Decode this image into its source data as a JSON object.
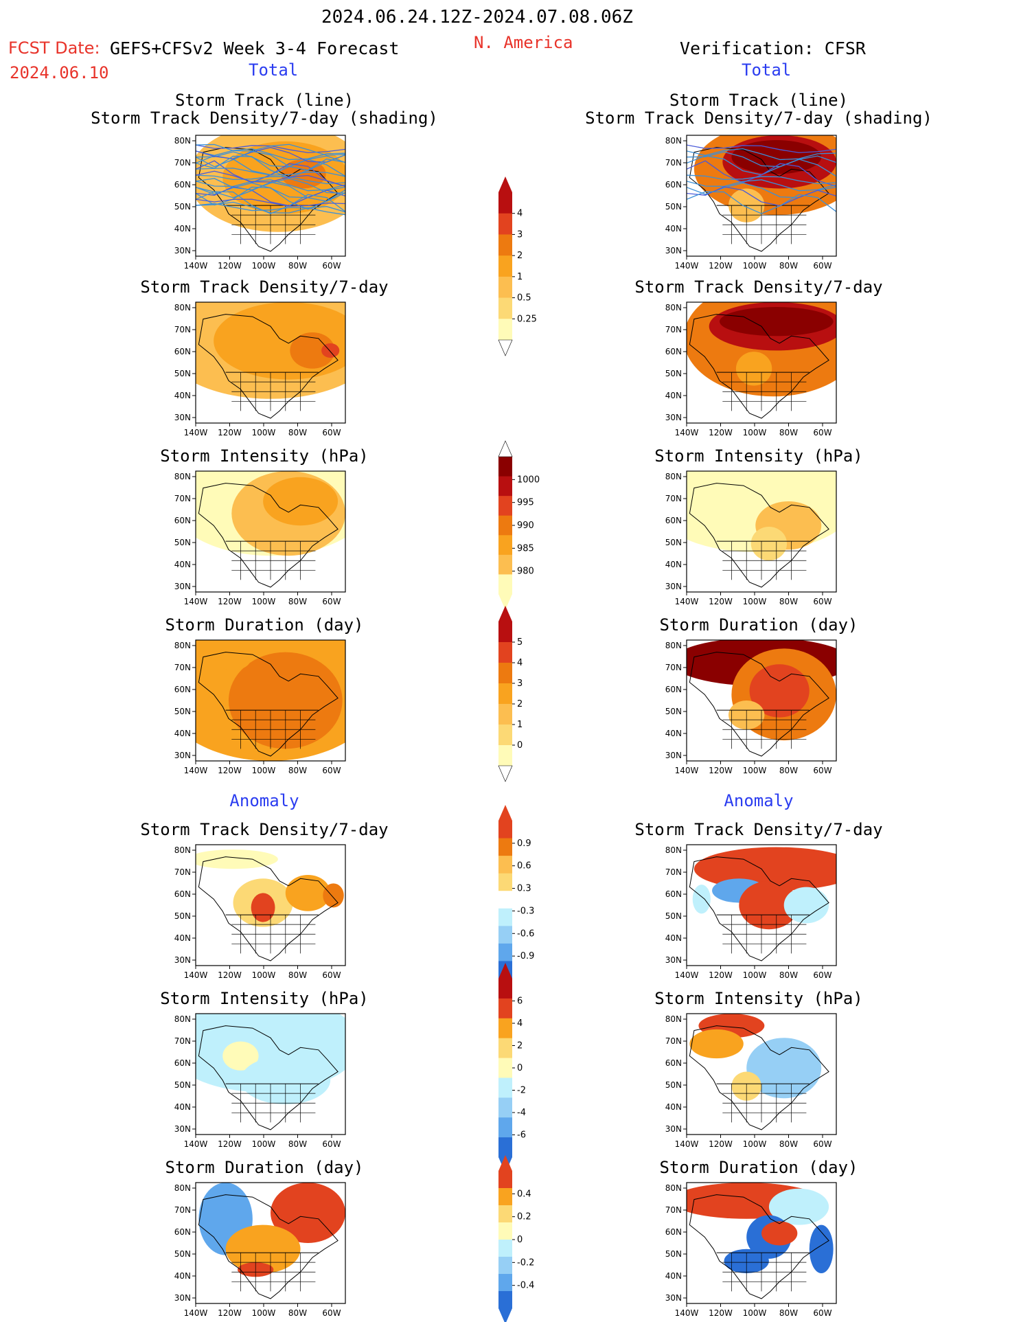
{
  "header": {
    "time_range": "2024.06.24.12Z-2024.07.08.06Z",
    "fcst_label": "FCST Date:",
    "forecast_name": "GEFS+CFSv2 Week 3-4 Forecast",
    "fcst_date": "2024.06.10",
    "region": "N. America",
    "verification": "Verification: CFSR",
    "section_total": "Total",
    "section_anomaly": "Anomaly"
  },
  "axes": {
    "lat_ticks": [
      "80N",
      "70N",
      "60N",
      "50N",
      "40N",
      "30N"
    ],
    "lon_ticks": [
      "140W",
      "120W",
      "100W",
      "80W",
      "60W"
    ]
  },
  "colors": {
    "c0": "#fffbb8",
    "c1": "#fcd975",
    "c2": "#fcbe50",
    "c3": "#f9a31f",
    "c4": "#ed7a10",
    "c5": "#e2431f",
    "c6": "#b80f10",
    "c7": "#8a0000",
    "b1": "#bff0fc",
    "b2": "#96cff5",
    "b3": "#5fa7ec",
    "b4": "#2a6fd6",
    "track": "#3a8fd8",
    "track_alt": "#4a5ad8"
  },
  "panels": {
    "fc_track": "Storm Track (line)",
    "fc_track_sub": "Storm Track Density/7-day (shading)",
    "fc_density": "Storm Track Density/7-day",
    "fc_intensity": "Storm Intensity (hPa)",
    "fc_duration": "Storm Duration (day)",
    "fc_anom_density": "Storm Track Density/7-day",
    "fc_anom_intensity": "Storm Intensity (hPa)",
    "fc_anom_duration": "Storm Duration (day)",
    "vf_track": "Storm Track (line)",
    "vf_track_sub": "Storm Track Density/7-day (shading)",
    "vf_density": "Storm Track Density/7-day",
    "vf_intensity": "Storm Intensity (hPa)",
    "vf_duration": "Storm Duration (day)",
    "vf_anom_density": "Storm Track Density/7-day",
    "vf_anom_intensity": "Storm Intensity (hPa)",
    "vf_anom_duration": "Storm Duration (day)"
  },
  "colorbars": [
    {
      "id": "density",
      "labels": [
        "4",
        "3",
        "2",
        "1",
        "0.5",
        "0.25"
      ]
    },
    {
      "id": "intensity",
      "labels": [
        "1000",
        "995",
        "990",
        "985",
        "980"
      ]
    },
    {
      "id": "duration",
      "labels": [
        "5",
        "4",
        "3",
        "2",
        "1",
        "0"
      ]
    },
    {
      "id": "anom_density",
      "labels": [
        "0.9",
        "0.6",
        "0.3",
        "-0.3",
        "-0.6",
        "-0.9"
      ]
    },
    {
      "id": "anom_intensity",
      "labels": [
        "6",
        "4",
        "2",
        "0",
        "-2",
        "-4",
        "-6"
      ]
    },
    {
      "id": "anom_duration",
      "labels": [
        "0.4",
        "0.2",
        "0",
        "-0.2",
        "-0.4"
      ]
    }
  ]
}
